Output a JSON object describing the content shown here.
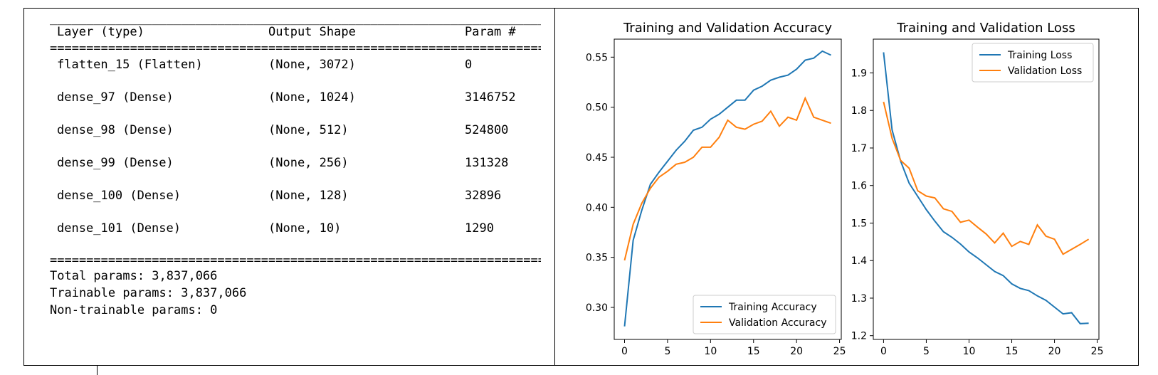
{
  "model_summary": {
    "top_rule": "___________________________________________________________________________",
    "header": {
      "layer": "Layer (type)",
      "shape": "Output Shape",
      "params": "Param #"
    },
    "eq_rule": "===========================================================================",
    "rows": [
      {
        "layer": "flatten_15 (Flatten)",
        "shape": "(None, 3072)",
        "params": "0"
      },
      {
        "layer": "dense_97 (Dense)",
        "shape": "(None, 1024)",
        "params": "3146752"
      },
      {
        "layer": "dense_98 (Dense)",
        "shape": "(None, 512)",
        "params": "524800"
      },
      {
        "layer": "dense_99 (Dense)",
        "shape": "(None, 256)",
        "params": "131328"
      },
      {
        "layer": "dense_100 (Dense)",
        "shape": "(None, 128)",
        "params": "32896"
      },
      {
        "layer": "dense_101 (Dense)",
        "shape": "(None, 10)",
        "params": "1290"
      }
    ],
    "bottom_rule": "===========================================================================",
    "total_params": "Total params: 3,837,066",
    "trainable_params": "Trainable params: 3,837,066",
    "non_trainable_params": "Non-trainable params: 0"
  },
  "chart_data": [
    {
      "type": "line",
      "title": "Training and Validation Accuracy",
      "xlabel": "",
      "ylabel": "",
      "xlim": [
        -1.2,
        25.2
      ],
      "ylim": [
        0.268,
        0.568
      ],
      "xticks": [
        0,
        5,
        10,
        15,
        20,
        25
      ],
      "yticks": [
        0.3,
        0.35,
        0.4,
        0.45,
        0.5,
        0.55
      ],
      "ytick_labels": [
        "0.30",
        "0.35",
        "0.40",
        "0.45",
        "0.50",
        "0.55"
      ],
      "legend_position": "lower-right",
      "grid": false,
      "x": [
        0,
        1,
        2,
        3,
        4,
        5,
        6,
        7,
        8,
        9,
        10,
        11,
        12,
        13,
        14,
        15,
        16,
        17,
        18,
        19,
        20,
        21,
        22,
        23,
        24
      ],
      "series": [
        {
          "name": "Training Accuracy",
          "color": "#1f77b4",
          "values": [
            0.281,
            0.367,
            0.397,
            0.423,
            0.435,
            0.446,
            0.457,
            0.466,
            0.477,
            0.48,
            0.488,
            0.493,
            0.5,
            0.507,
            0.507,
            0.517,
            0.521,
            0.527,
            0.53,
            0.532,
            0.538,
            0.547,
            0.549,
            0.556,
            0.552
          ]
        },
        {
          "name": "Validation Accuracy",
          "color": "#ff7f0e",
          "values": [
            0.347,
            0.383,
            0.404,
            0.419,
            0.43,
            0.436,
            0.443,
            0.445,
            0.45,
            0.46,
            0.46,
            0.47,
            0.487,
            0.48,
            0.478,
            0.483,
            0.486,
            0.496,
            0.481,
            0.49,
            0.487,
            0.509,
            0.49,
            0.487,
            0.484
          ]
        }
      ]
    },
    {
      "type": "line",
      "title": "Training and Validation Loss",
      "xlabel": "",
      "ylabel": "",
      "xlim": [
        -1.2,
        25.2
      ],
      "ylim": [
        1.19,
        1.99
      ],
      "xticks": [
        0,
        5,
        10,
        15,
        20,
        25
      ],
      "yticks": [
        1.2,
        1.3,
        1.4,
        1.5,
        1.6,
        1.7,
        1.8,
        1.9
      ],
      "ytick_labels": [
        "1.2",
        "1.3",
        "1.4",
        "1.5",
        "1.6",
        "1.7",
        "1.8",
        "1.9"
      ],
      "legend_position": "top-right",
      "grid": false,
      "x": [
        0,
        1,
        2,
        3,
        4,
        5,
        6,
        7,
        8,
        9,
        10,
        11,
        12,
        13,
        14,
        15,
        16,
        17,
        18,
        19,
        20,
        21,
        22,
        23,
        24
      ],
      "series": [
        {
          "name": "Training Loss",
          "color": "#1f77b4",
          "values": [
            1.955,
            1.748,
            1.665,
            1.606,
            1.571,
            1.536,
            1.505,
            1.477,
            1.462,
            1.444,
            1.423,
            1.407,
            1.389,
            1.371,
            1.36,
            1.338,
            1.326,
            1.32,
            1.306,
            1.294,
            1.276,
            1.258,
            1.261,
            1.232,
            1.233
          ]
        },
        {
          "name": "Validation Loss",
          "color": "#ff7f0e",
          "values": [
            1.823,
            1.726,
            1.667,
            1.646,
            1.586,
            1.572,
            1.567,
            1.538,
            1.531,
            1.502,
            1.508,
            1.489,
            1.471,
            1.447,
            1.473,
            1.438,
            1.451,
            1.443,
            1.495,
            1.465,
            1.457,
            1.417,
            1.43,
            1.443,
            1.457
          ]
        }
      ]
    }
  ]
}
